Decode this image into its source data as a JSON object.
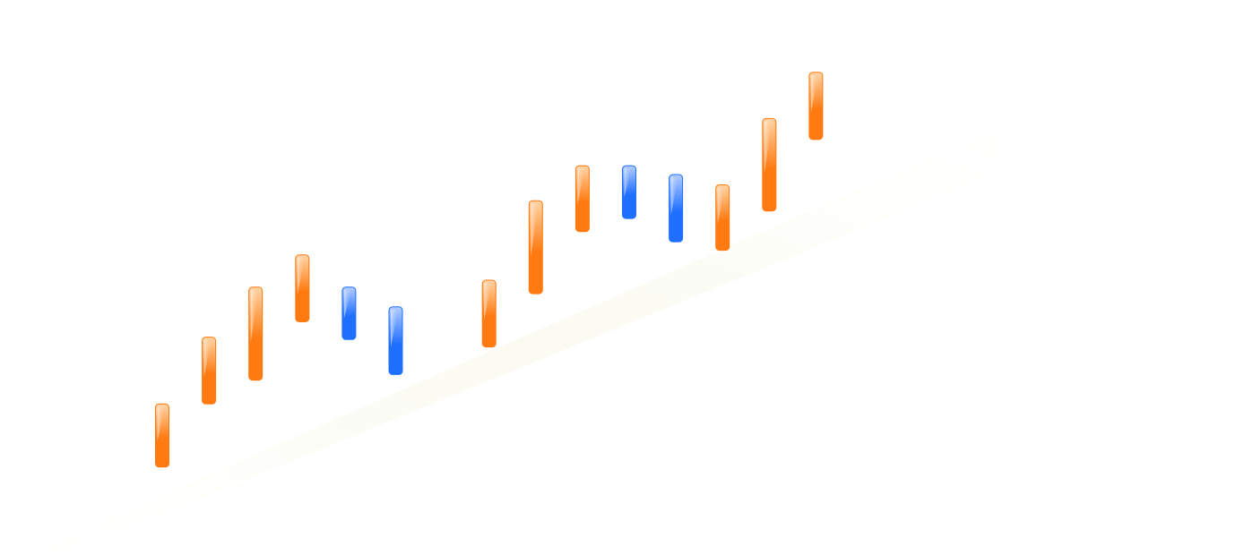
{
  "chart_data": {
    "type": "candlestick",
    "title": "",
    "xlabel": "",
    "ylabel": "",
    "grid": false,
    "legend": "none",
    "colors": {
      "up": "#ff7a10",
      "up_light": "#ffd4a6",
      "down": "#1f6fff",
      "down_light": "#b3ccff",
      "shadow": "#fbfbf2"
    },
    "ylim": [
      0,
      100
    ],
    "series": [
      {
        "values": [
          {
            "x": 1,
            "open": 14.5,
            "close": 1.0,
            "direction": "up"
          },
          {
            "x": 2,
            "open": 28.8,
            "close": 14.5,
            "direction": "up"
          },
          {
            "x": 3,
            "open": 39.5,
            "close": 19.6,
            "direction": "up"
          },
          {
            "x": 4,
            "open": 46.4,
            "close": 32.1,
            "direction": "up"
          },
          {
            "x": 5,
            "open": 39.5,
            "close": 28.3,
            "direction": "down"
          },
          {
            "x": 6,
            "open": 35.3,
            "close": 20.8,
            "direction": "down"
          },
          {
            "x": 8,
            "open": 41.0,
            "close": 26.7,
            "direction": "up"
          },
          {
            "x": 9,
            "open": 58.0,
            "close": 38.1,
            "direction": "up"
          },
          {
            "x": 10,
            "open": 65.5,
            "close": 51.4,
            "direction": "up"
          },
          {
            "x": 11,
            "open": 65.5,
            "close": 54.2,
            "direction": "down"
          },
          {
            "x": 12,
            "open": 63.6,
            "close": 49.2,
            "direction": "down"
          },
          {
            "x": 13,
            "open": 61.4,
            "close": 47.4,
            "direction": "up"
          },
          {
            "x": 14,
            "open": 75.6,
            "close": 55.8,
            "direction": "up"
          },
          {
            "x": 15,
            "open": 85.5,
            "close": 71.1,
            "direction": "up"
          }
        ]
      }
    ]
  }
}
